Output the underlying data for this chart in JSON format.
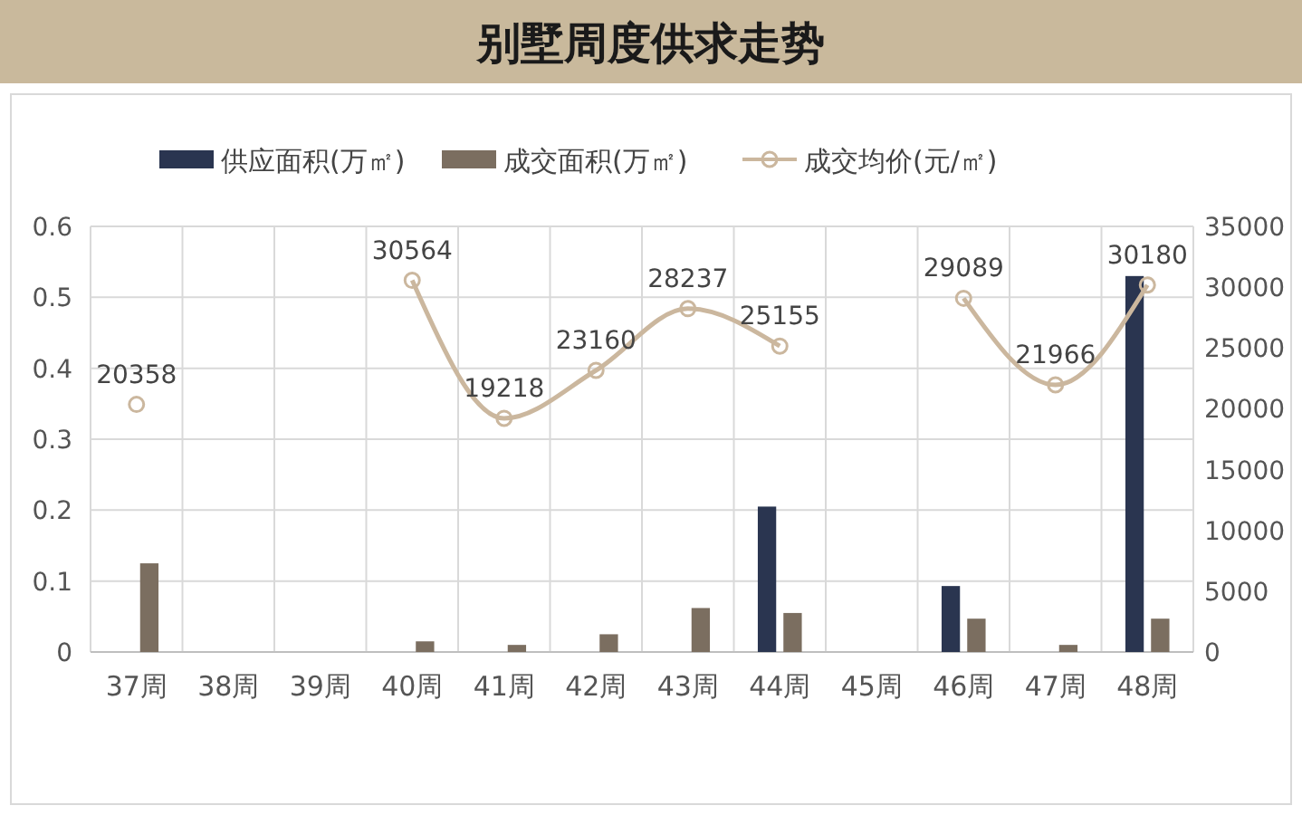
{
  "chart_data": {
    "type": "bar",
    "title": "别墅周度供求走势",
    "categories": [
      "37周",
      "38周",
      "39周",
      "40周",
      "41周",
      "42周",
      "43周",
      "44周",
      "45周",
      "46周",
      "47周",
      "48周"
    ],
    "series": [
      {
        "name": "供应面积(万㎡)",
        "color": "#2a3550",
        "values": [
          null,
          null,
          null,
          null,
          null,
          null,
          null,
          0.205,
          null,
          0.093,
          null,
          0.53
        ]
      },
      {
        "name": "成交面积(万㎡)",
        "color": "#7b6e60",
        "values": [
          0.125,
          null,
          null,
          0.015,
          0.01,
          0.025,
          0.062,
          0.055,
          null,
          0.047,
          0.01,
          0.047
        ]
      },
      {
        "name": "成交均价(元/㎡)",
        "type": "line",
        "axis": "y2",
        "color": "#cbb79e",
        "marker": "circle",
        "values": [
          20358,
          null,
          null,
          30564,
          19218,
          23160,
          28237,
          25155,
          null,
          29089,
          21966,
          30180
        ],
        "value_labels": [
          "20358",
          null,
          null,
          "30564",
          "19218",
          "23160",
          "28237",
          "25155",
          null,
          "29089",
          "21966",
          "30180"
        ]
      }
    ],
    "ylim": [
      0,
      0.6
    ],
    "yticks": [
      0,
      0.1,
      0.2,
      0.3,
      0.4,
      0.5,
      0.6
    ],
    "y2lim": [
      0,
      35000
    ],
    "y2ticks": [
      0,
      5000,
      10000,
      15000,
      20000,
      25000,
      30000,
      35000
    ],
    "grid": true,
    "legend": "top"
  }
}
